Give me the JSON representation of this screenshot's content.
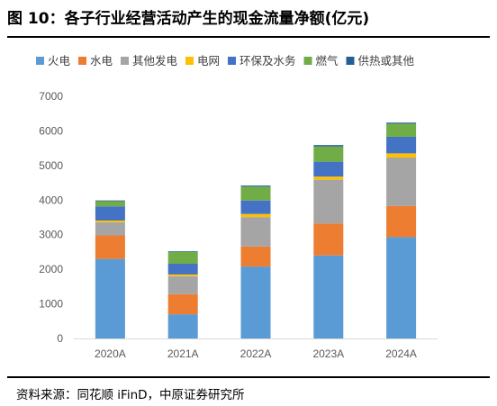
{
  "header": {
    "title": "图 10：各子行业经营活动产生的现金流量净额(亿元)"
  },
  "footer": {
    "source": "资料来源：同花顺 iFinD，中原证券研究所"
  },
  "chart_data": {
    "type": "bar",
    "stacked": true,
    "title": "",
    "xlabel": "",
    "ylabel": "",
    "categories": [
      "2020A",
      "2021A",
      "2022A",
      "2023A",
      "2024A"
    ],
    "ylim": [
      0,
      7000
    ],
    "yticks": [
      0,
      1000,
      2000,
      3000,
      4000,
      5000,
      6000,
      7000
    ],
    "grid": false,
    "legend_position": "top",
    "series": [
      {
        "name": "火电",
        "color": "#5B9BD5",
        "values": [
          2300,
          700,
          2080,
          2400,
          2930
        ]
      },
      {
        "name": "水电",
        "color": "#ED7D31",
        "values": [
          680,
          580,
          580,
          920,
          900
        ]
      },
      {
        "name": "其他发电",
        "color": "#A5A5A5",
        "values": [
          380,
          520,
          850,
          1270,
          1400
        ]
      },
      {
        "name": "电网",
        "color": "#FFC000",
        "values": [
          50,
          50,
          90,
          90,
          120
        ]
      },
      {
        "name": "环保及水务",
        "color": "#4472C4",
        "values": [
          410,
          310,
          390,
          430,
          480
        ]
      },
      {
        "name": "燃气",
        "color": "#70AD47",
        "values": [
          150,
          340,
          400,
          440,
          380
        ]
      },
      {
        "name": "供热或其他",
        "color": "#255E91",
        "values": [
          20,
          20,
          30,
          40,
          30
        ]
      }
    ]
  }
}
